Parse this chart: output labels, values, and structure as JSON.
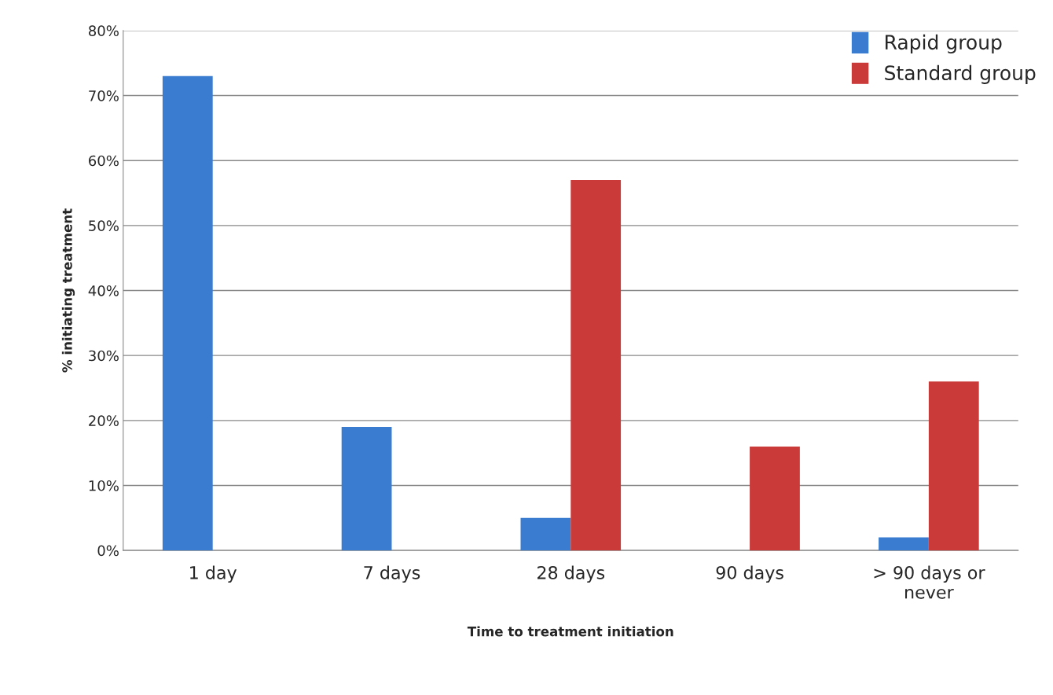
{
  "chart_data": {
    "type": "bar",
    "xlabel": "Time to treatment initiation",
    "ylabel": "% initiating treatment",
    "categories": [
      "1 day",
      "7 days",
      "28 days",
      "90 days",
      "> 90 days or\nnever"
    ],
    "series": [
      {
        "name": "Rapid group",
        "color": "#3a7dd0",
        "values": [
          73,
          19,
          5,
          null,
          2
        ]
      },
      {
        "name": "Standard group",
        "color": "#c93a38",
        "values": [
          null,
          null,
          57,
          16,
          26
        ]
      }
    ],
    "ylim": [
      0,
      80
    ],
    "yticks": [
      {
        "value": 0,
        "label": "0%"
      },
      {
        "value": 10,
        "label": "10%"
      },
      {
        "value": 20,
        "label": "20%"
      },
      {
        "value": 30,
        "label": "30%"
      },
      {
        "value": 40,
        "label": "40%"
      },
      {
        "value": 50,
        "label": "50%"
      },
      {
        "value": 60,
        "label": "60%"
      },
      {
        "value": 70,
        "label": "70%"
      },
      {
        "value": 80,
        "label": "80%"
      }
    ],
    "grid": "y",
    "legend": "top right"
  }
}
